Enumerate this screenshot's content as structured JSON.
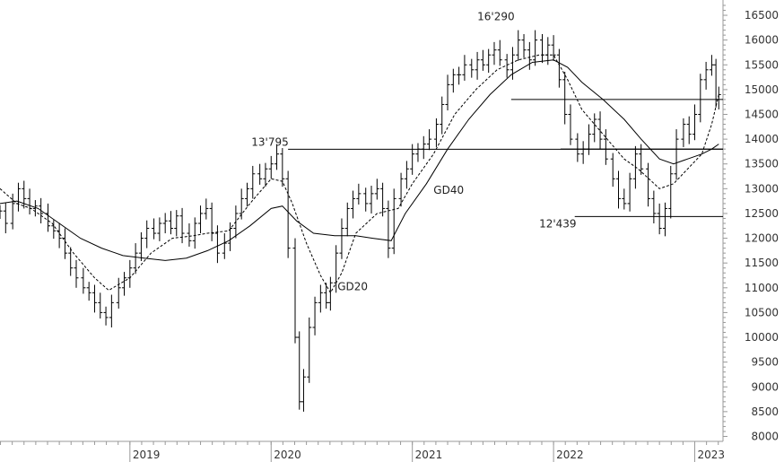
{
  "chart_data": {
    "type": "line",
    "subtype": "ohlc-weekly-bars-with-moving-averages",
    "colors": {
      "bars": "#000000",
      "lines": "#000000",
      "axis": "#999999",
      "text": "#333333",
      "background": "#ffffff"
    },
    "y_axis": {
      "position": "right",
      "ylim": [
        7900,
        16700
      ],
      "ticks": [
        8000,
        8500,
        9000,
        9500,
        10000,
        10500,
        11000,
        11500,
        12000,
        12500,
        13000,
        13500,
        14000,
        14500,
        15000,
        15500,
        16000,
        16500
      ],
      "tick_labels": [
        "8000",
        "8500",
        "9000",
        "9500",
        "10000",
        "10500",
        "11000",
        "11500",
        "12000",
        "12500",
        "13000",
        "13500",
        "14000",
        "14500",
        "15000",
        "15500",
        "16000",
        "16500"
      ]
    },
    "x_axis": {
      "xlim": [
        2018.08,
        2023.2
      ],
      "ticks": [
        2019,
        2020,
        2021,
        2022,
        2023
      ],
      "tick_labels": [
        "2019",
        "2020",
        "2021",
        "2022",
        "2023"
      ]
    },
    "price_series": [
      [
        2018.08,
        12550
      ],
      [
        2018.12,
        12300
      ],
      [
        2018.17,
        12700
      ],
      [
        2018.21,
        13000
      ],
      [
        2018.25,
        12800
      ],
      [
        2018.29,
        12600
      ],
      [
        2018.33,
        12650
      ],
      [
        2018.37,
        12500
      ],
      [
        2018.42,
        12250
      ],
      [
        2018.46,
        12150
      ],
      [
        2018.5,
        12000
      ],
      [
        2018.54,
        11700
      ],
      [
        2018.58,
        11400
      ],
      [
        2018.62,
        11200
      ],
      [
        2018.67,
        11000
      ],
      [
        2018.71,
        10900
      ],
      [
        2018.75,
        10700
      ],
      [
        2018.79,
        10500
      ],
      [
        2018.83,
        10400
      ],
      [
        2018.87,
        10700
      ],
      [
        2018.92,
        11000
      ],
      [
        2018.96,
        11200
      ],
      [
        2019.0,
        11400
      ],
      [
        2019.04,
        11700
      ],
      [
        2019.08,
        12000
      ],
      [
        2019.12,
        12200
      ],
      [
        2019.17,
        12100
      ],
      [
        2019.21,
        12300
      ],
      [
        2019.25,
        12350
      ],
      [
        2019.29,
        12200
      ],
      [
        2019.33,
        12450
      ],
      [
        2019.37,
        12100
      ],
      [
        2019.42,
        11950
      ],
      [
        2019.46,
        12300
      ],
      [
        2019.5,
        12500
      ],
      [
        2019.54,
        12600
      ],
      [
        2019.58,
        12100
      ],
      [
        2019.62,
        11700
      ],
      [
        2019.67,
        11900
      ],
      [
        2019.71,
        12200
      ],
      [
        2019.75,
        12500
      ],
      [
        2019.79,
        12800
      ],
      [
        2019.83,
        13000
      ],
      [
        2019.87,
        13300
      ],
      [
        2019.92,
        13200
      ],
      [
        2019.96,
        13400
      ],
      [
        2020.0,
        13500
      ],
      [
        2020.04,
        13700
      ],
      [
        2020.08,
        13200
      ],
      [
        2020.12,
        11800
      ],
      [
        2020.17,
        10000
      ],
      [
        2020.2,
        8700
      ],
      [
        2020.23,
        9200
      ],
      [
        2020.27,
        10200
      ],
      [
        2020.31,
        10700
      ],
      [
        2020.35,
        10900
      ],
      [
        2020.39,
        10700
      ],
      [
        2020.42,
        11100
      ],
      [
        2020.46,
        11700
      ],
      [
        2020.5,
        12200
      ],
      [
        2020.54,
        12600
      ],
      [
        2020.58,
        12800
      ],
      [
        2020.62,
        12900
      ],
      [
        2020.67,
        12700
      ],
      [
        2020.71,
        12900
      ],
      [
        2020.75,
        13000
      ],
      [
        2020.79,
        12600
      ],
      [
        2020.83,
        11800
      ],
      [
        2020.87,
        12800
      ],
      [
        2020.92,
        13200
      ],
      [
        2020.96,
        13400
      ],
      [
        2021.0,
        13700
      ],
      [
        2021.04,
        13800
      ],
      [
        2021.08,
        13900
      ],
      [
        2021.12,
        14000
      ],
      [
        2021.17,
        14300
      ],
      [
        2021.21,
        14700
      ],
      [
        2021.25,
        15100
      ],
      [
        2021.29,
        15300
      ],
      [
        2021.33,
        15300
      ],
      [
        2021.37,
        15500
      ],
      [
        2021.42,
        15400
      ],
      [
        2021.46,
        15600
      ],
      [
        2021.5,
        15500
      ],
      [
        2021.54,
        15700
      ],
      [
        2021.58,
        15800
      ],
      [
        2021.62,
        15600
      ],
      [
        2021.67,
        15400
      ],
      [
        2021.71,
        15700
      ],
      [
        2021.75,
        16000
      ],
      [
        2021.79,
        15800
      ],
      [
        2021.83,
        15600
      ],
      [
        2021.87,
        16000
      ],
      [
        2021.92,
        15700
      ],
      [
        2021.96,
        15900
      ],
      [
        2022.0,
        15700
      ],
      [
        2022.04,
        15200
      ],
      [
        2022.08,
        14500
      ],
      [
        2022.12,
        14000
      ],
      [
        2022.17,
        13700
      ],
      [
        2022.21,
        13800
      ],
      [
        2022.25,
        14100
      ],
      [
        2022.29,
        14400
      ],
      [
        2022.33,
        14000
      ],
      [
        2022.37,
        13600
      ],
      [
        2022.42,
        13200
      ],
      [
        2022.46,
        12800
      ],
      [
        2022.5,
        12700
      ],
      [
        2022.54,
        13200
      ],
      [
        2022.58,
        13700
      ],
      [
        2022.62,
        13400
      ],
      [
        2022.67,
        12800
      ],
      [
        2022.71,
        12500
      ],
      [
        2022.75,
        12200
      ],
      [
        2022.79,
        12600
      ],
      [
        2022.83,
        13300
      ],
      [
        2022.87,
        14000
      ],
      [
        2022.92,
        14300
      ],
      [
        2022.96,
        14100
      ],
      [
        2023.0,
        14500
      ],
      [
        2023.04,
        15200
      ],
      [
        2023.08,
        15400
      ],
      [
        2023.12,
        15500
      ],
      [
        2023.15,
        14800
      ],
      [
        2023.17,
        14900
      ]
    ],
    "series": [
      {
        "name": "GD20",
        "style": "dashed",
        "values": [
          [
            2018.08,
            13000
          ],
          [
            2018.2,
            12700
          ],
          [
            2018.3,
            12600
          ],
          [
            2018.45,
            12300
          ],
          [
            2018.6,
            11700
          ],
          [
            2018.75,
            11200
          ],
          [
            2018.85,
            10950
          ],
          [
            2019.0,
            11200
          ],
          [
            2019.15,
            11700
          ],
          [
            2019.3,
            12000
          ],
          [
            2019.45,
            12050
          ],
          [
            2019.55,
            12100
          ],
          [
            2019.7,
            12150
          ],
          [
            2019.85,
            12700
          ],
          [
            2020.0,
            13200
          ],
          [
            2020.08,
            13150
          ],
          [
            2020.15,
            12700
          ],
          [
            2020.25,
            11900
          ],
          [
            2020.35,
            11250
          ],
          [
            2020.42,
            10900
          ],
          [
            2020.5,
            11300
          ],
          [
            2020.6,
            12100
          ],
          [
            2020.75,
            12500
          ],
          [
            2020.9,
            12600
          ],
          [
            2021.0,
            13100
          ],
          [
            2021.15,
            13700
          ],
          [
            2021.3,
            14500
          ],
          [
            2021.45,
            15000
          ],
          [
            2021.6,
            15400
          ],
          [
            2021.75,
            15600
          ],
          [
            2021.9,
            15700
          ],
          [
            2022.0,
            15700
          ],
          [
            2022.1,
            15200
          ],
          [
            2022.2,
            14600
          ],
          [
            2022.35,
            14100
          ],
          [
            2022.5,
            13600
          ],
          [
            2022.6,
            13400
          ],
          [
            2022.75,
            13000
          ],
          [
            2022.85,
            13100
          ],
          [
            2022.95,
            13400
          ],
          [
            2023.05,
            13700
          ],
          [
            2023.12,
            14300
          ],
          [
            2023.17,
            14900
          ]
        ]
      },
      {
        "name": "GD40",
        "style": "solid",
        "values": [
          [
            2018.08,
            12700
          ],
          [
            2018.2,
            12750
          ],
          [
            2018.35,
            12600
          ],
          [
            2018.5,
            12300
          ],
          [
            2018.65,
            12000
          ],
          [
            2018.8,
            11800
          ],
          [
            2018.95,
            11650
          ],
          [
            2019.1,
            11600
          ],
          [
            2019.25,
            11550
          ],
          [
            2019.4,
            11600
          ],
          [
            2019.55,
            11750
          ],
          [
            2019.7,
            11950
          ],
          [
            2019.85,
            12250
          ],
          [
            2020.0,
            12600
          ],
          [
            2020.08,
            12650
          ],
          [
            2020.18,
            12350
          ],
          [
            2020.3,
            12100
          ],
          [
            2020.45,
            12050
          ],
          [
            2020.6,
            12050
          ],
          [
            2020.72,
            12000
          ],
          [
            2020.85,
            11950
          ],
          [
            2020.95,
            12500
          ],
          [
            2021.1,
            13100
          ],
          [
            2021.25,
            13800
          ],
          [
            2021.4,
            14400
          ],
          [
            2021.55,
            14900
          ],
          [
            2021.7,
            15300
          ],
          [
            2021.85,
            15550
          ],
          [
            2022.0,
            15600
          ],
          [
            2022.1,
            15450
          ],
          [
            2022.2,
            15150
          ],
          [
            2022.35,
            14800
          ],
          [
            2022.5,
            14400
          ],
          [
            2022.62,
            14000
          ],
          [
            2022.75,
            13600
          ],
          [
            2022.85,
            13500
          ],
          [
            2022.95,
            13600
          ],
          [
            2023.05,
            13700
          ],
          [
            2023.12,
            13800
          ],
          [
            2023.17,
            13900
          ]
        ]
      }
    ],
    "horizontal_levels": [
      {
        "value": 13795,
        "from_x": 2020.12
      },
      {
        "value": 14800,
        "from_x": 2021.7
      },
      {
        "value": 13800,
        "from_x": 2022.05
      },
      {
        "value": 12439,
        "from_x": 2022.15
      }
    ],
    "annotations": [
      {
        "text": "13'795",
        "x": 2020.0,
        "y": 13795
      },
      {
        "text": "16'290",
        "x": 2021.6,
        "y": 16290
      },
      {
        "text": "12'439",
        "x": 2022.0,
        "y": 12439
      },
      {
        "text": "GD20",
        "x": 2020.47,
        "y": 10950
      },
      {
        "text": "GD40",
        "x": 2021.15,
        "y": 12900
      }
    ]
  }
}
